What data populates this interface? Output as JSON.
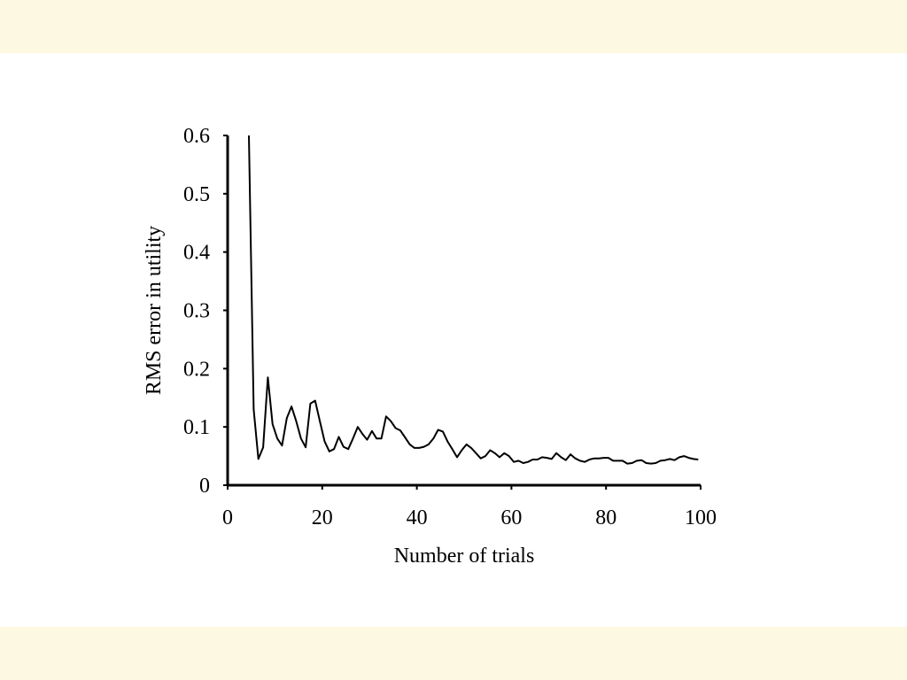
{
  "colors": {
    "band": "#fdf8e1",
    "background": "#ffffff",
    "line": "#000000"
  },
  "chart_data": {
    "type": "line",
    "xlabel": "Number of trials",
    "ylabel": "RMS error in utility",
    "xlim": [
      0,
      100
    ],
    "ylim": [
      0,
      0.6
    ],
    "xticks": [
      0,
      20,
      40,
      60,
      80,
      100
    ],
    "yticks": [
      0,
      0.1,
      0.2,
      0.3,
      0.4,
      0.5,
      0.6
    ],
    "xtick_labels": [
      "0",
      "20",
      "40",
      "60",
      "80",
      "100"
    ],
    "ytick_labels": [
      "0",
      "0.1",
      "0.2",
      "0.3",
      "0.4",
      "0.5",
      "0.6"
    ],
    "grid": false,
    "legend": "none",
    "series": [
      {
        "x": [
          4.5,
          5.5,
          6.5,
          7.5,
          8.5,
          9.5,
          10.5,
          11.5,
          12.5,
          13.5,
          14.5,
          15.5,
          16.5,
          17.5,
          18.5,
          19.5,
          20.5,
          21.5,
          22.5,
          23.5,
          24.5,
          25.5,
          26.5,
          27.5,
          28.5,
          29.5,
          30.5,
          31.5,
          32.5,
          33.5,
          34.5,
          35.5,
          36.5,
          37.5,
          38.5,
          39.5,
          40.5,
          41.5,
          42.5,
          43.5,
          44.5,
          45.5,
          46.5,
          47.5,
          48.5,
          49.5,
          50.5,
          51.5,
          52.5,
          53.5,
          54.5,
          55.5,
          56.5,
          57.5,
          58.5,
          59.5,
          60.5,
          61.5,
          62.5,
          63.5,
          64.5,
          65.5,
          66.5,
          67.5,
          68.5,
          69.5,
          70.5,
          71.5,
          72.5,
          73.5,
          74.5,
          75.5,
          76.5,
          77.5,
          78.5,
          79.5,
          80.5,
          81.5,
          82.5,
          83.5,
          84.5,
          85.5,
          86.5,
          87.5,
          88.5,
          89.5,
          90.5,
          91.5,
          92.5,
          93.5,
          94.5,
          95.5,
          96.5,
          97.5,
          98.5,
          99.5
        ],
        "y": [
          0.6,
          0.13,
          0.045,
          0.065,
          0.185,
          0.105,
          0.08,
          0.068,
          0.115,
          0.135,
          0.11,
          0.08,
          0.065,
          0.14,
          0.145,
          0.11,
          0.075,
          0.058,
          0.062,
          0.083,
          0.066,
          0.062,
          0.08,
          0.1,
          0.088,
          0.078,
          0.093,
          0.08,
          0.08,
          0.118,
          0.11,
          0.098,
          0.094,
          0.082,
          0.07,
          0.064,
          0.064,
          0.066,
          0.07,
          0.08,
          0.095,
          0.092,
          0.075,
          0.062,
          0.048,
          0.06,
          0.07,
          0.064,
          0.055,
          0.046,
          0.05,
          0.06,
          0.055,
          0.048,
          0.055,
          0.05,
          0.04,
          0.042,
          0.038,
          0.04,
          0.044,
          0.044,
          0.048,
          0.047,
          0.045,
          0.055,
          0.048,
          0.043,
          0.053,
          0.046,
          0.042,
          0.04,
          0.044,
          0.046,
          0.046,
          0.047,
          0.047,
          0.042,
          0.042,
          0.042,
          0.037,
          0.038,
          0.042,
          0.043,
          0.038,
          0.037,
          0.038,
          0.042,
          0.043,
          0.045,
          0.043,
          0.048,
          0.05,
          0.047,
          0.045,
          0.044
        ]
      }
    ]
  }
}
